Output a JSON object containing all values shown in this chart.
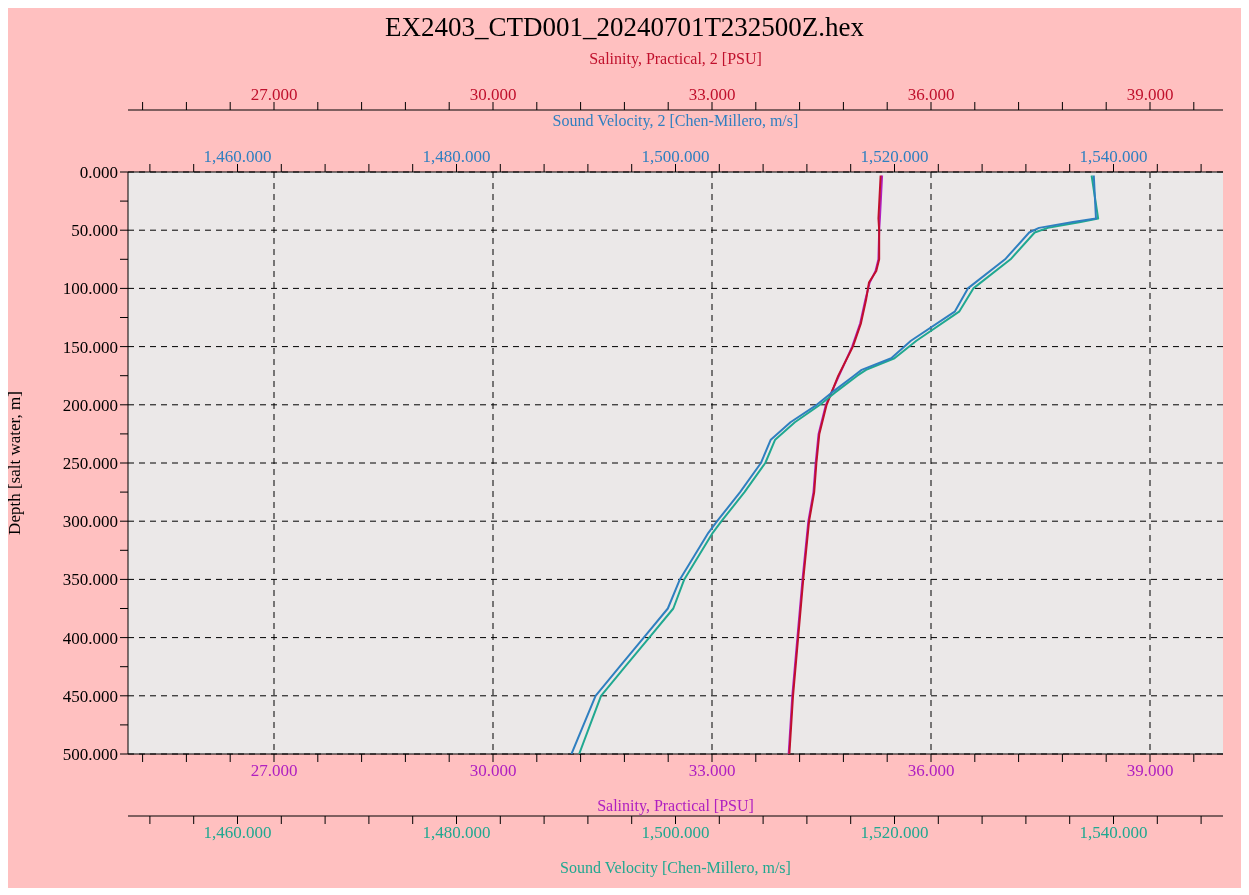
{
  "chart_data": {
    "type": "line",
    "title": "EX2403_CTD001_20240701T232500Z.hex",
    "xlabel": "Salinity, Practical [PSU]",
    "x2label": "Sound Velocity, 2 [Chen-Millero, m/s]",
    "ylabel": "Depth [salt water, m]",
    "annotations": [
      "Salinity, Practical, 2 [PSU]",
      "Sound Velocity [Chen-Millero, m/s]"
    ],
    "xlim": [
      25,
      40
    ],
    "x2lim": [
      1450,
      1550
    ],
    "ylim": [
      500,
      0
    ],
    "xticks": [
      {
        "value": 25.2,
        "label": null
      },
      {
        "value": 25.8,
        "label": null
      },
      {
        "value": 26.4,
        "label": null
      },
      {
        "value": 27,
        "label": "27.000"
      },
      {
        "value": 27.6,
        "label": null
      },
      {
        "value": 28.2,
        "label": null
      },
      {
        "value": 28.8,
        "label": null
      },
      {
        "value": 29.4,
        "label": null
      },
      {
        "value": 30,
        "label": "30.000"
      },
      {
        "value": 30.6,
        "label": null
      },
      {
        "value": 31.2,
        "label": null
      },
      {
        "value": 31.8,
        "label": null
      },
      {
        "value": 32.4,
        "label": null
      },
      {
        "value": 33,
        "label": "33.000"
      },
      {
        "value": 33.6,
        "label": null
      },
      {
        "value": 34.2,
        "label": null
      },
      {
        "value": 34.8,
        "label": null
      },
      {
        "value": 35.4,
        "label": null
      },
      {
        "value": 36,
        "label": "36.000"
      },
      {
        "value": 36.6,
        "label": null
      },
      {
        "value": 37.2,
        "label": null
      },
      {
        "value": 37.8,
        "label": null
      },
      {
        "value": 38.4,
        "label": null
      },
      {
        "value": 39,
        "label": "39.000"
      },
      {
        "value": 39.6,
        "label": null
      }
    ],
    "x2ticks": [
      {
        "value": 1452,
        "label": null
      },
      {
        "value": 1456,
        "label": null
      },
      {
        "value": 1460,
        "label": "1,460.000"
      },
      {
        "value": 1464,
        "label": null
      },
      {
        "value": 1468,
        "label": null
      },
      {
        "value": 1472,
        "label": null
      },
      {
        "value": 1476,
        "label": null
      },
      {
        "value": 1480,
        "label": "1,480.000"
      },
      {
        "value": 1484,
        "label": null
      },
      {
        "value": 1488,
        "label": null
      },
      {
        "value": 1492,
        "label": null
      },
      {
        "value": 1496,
        "label": null
      },
      {
        "value": 1500,
        "label": "1,500.000"
      },
      {
        "value": 1504,
        "label": null
      },
      {
        "value": 1508,
        "label": null
      },
      {
        "value": 1512,
        "label": null
      },
      {
        "value": 1516,
        "label": null
      },
      {
        "value": 1520,
        "label": "1,520.000"
      },
      {
        "value": 1524,
        "label": null
      },
      {
        "value": 1528,
        "label": null
      },
      {
        "value": 1532,
        "label": null
      },
      {
        "value": 1536,
        "label": null
      },
      {
        "value": 1540,
        "label": "1,540.000"
      },
      {
        "value": 1544,
        "label": null
      },
      {
        "value": 1548,
        "label": null
      }
    ],
    "yticks": [
      {
        "value": 0,
        "label": "0.000"
      },
      {
        "value": 25,
        "label": null
      },
      {
        "value": 50,
        "label": "50.000"
      },
      {
        "value": 75,
        "label": null
      },
      {
        "value": 100,
        "label": "100.000"
      },
      {
        "value": 125,
        "label": null
      },
      {
        "value": 150,
        "label": "150.000"
      },
      {
        "value": 175,
        "label": null
      },
      {
        "value": 200,
        "label": "200.000"
      },
      {
        "value": 225,
        "label": null
      },
      {
        "value": 250,
        "label": "250.000"
      },
      {
        "value": 275,
        "label": null
      },
      {
        "value": 300,
        "label": "300.000"
      },
      {
        "value": 325,
        "label": null
      },
      {
        "value": 350,
        "label": "350.000"
      },
      {
        "value": 375,
        "label": null
      },
      {
        "value": 400,
        "label": "400.000"
      },
      {
        "value": 425,
        "label": null
      },
      {
        "value": 450,
        "label": "450.000"
      },
      {
        "value": 475,
        "label": null
      },
      {
        "value": 500,
        "label": "500.000"
      }
    ],
    "grid": true,
    "series": [
      {
        "color": "#b020c0",
        "x": [
          35.33,
          35.3,
          35.29,
          35.28,
          35.24,
          35.16,
          35.1,
          35.03,
          34.92,
          34.74,
          34.56,
          34.46,
          34.42,
          34.39,
          34.32,
          34.24,
          34.17,
          34.1,
          34.05
        ],
        "values": [
          3,
          40,
          50,
          75,
          85,
          95,
          110,
          130,
          150,
          175,
          200,
          225,
          250,
          275,
          300,
          350,
          400,
          450,
          500
        ]
      },
      {
        "color": "#c0102c",
        "x": [
          35.31,
          35.28,
          35.29,
          35.29,
          35.25,
          35.15,
          35.11,
          35.04,
          34.93,
          34.73,
          34.57,
          34.47,
          34.43,
          34.4,
          34.33,
          34.25,
          34.18,
          34.11,
          34.06
        ],
        "values": [
          3,
          40,
          50,
          75,
          85,
          95,
          110,
          130,
          150,
          175,
          200,
          225,
          250,
          275,
          300,
          350,
          400,
          450,
          500
        ]
      },
      {
        "color": "#20a890",
        "axis": "x2",
        "x": [
          1538.0,
          1538.6,
          1537.0,
          1534.0,
          1532.8,
          1530.6,
          1527.2,
          1525.9,
          1522.0,
          1520.0,
          1517.4,
          1516.6,
          1514.5,
          1513.2,
          1510.9,
          1509.1,
          1508.2,
          1506.3,
          1504.2,
          1503.4,
          1500.8,
          1499.8,
          1497.6,
          1495.4,
          1493.2,
          1492.2,
          1491.2
        ],
        "values": [
          3,
          40,
          43,
          48,
          52,
          75,
          100,
          120,
          145,
          160,
          170,
          175,
          190,
          200,
          215,
          230,
          250,
          275,
          300,
          310,
          350,
          375,
          400,
          425,
          450,
          475,
          500
        ]
      },
      {
        "color": "#2f7fc0",
        "axis": "x2",
        "x": [
          1538.2,
          1538.4,
          1536.3,
          1533.2,
          1532.3,
          1530.1,
          1526.7,
          1525.5,
          1521.5,
          1519.7,
          1517.0,
          1516.3,
          1514.2,
          1512.9,
          1510.5,
          1508.7,
          1507.8,
          1505.9,
          1503.8,
          1503.0,
          1500.4,
          1499.3,
          1497.1,
          1494.9,
          1492.7,
          1491.6,
          1490.5
        ],
        "values": [
          3,
          40,
          43,
          48,
          52,
          75,
          100,
          120,
          145,
          160,
          170,
          175,
          190,
          200,
          215,
          230,
          250,
          275,
          300,
          310,
          350,
          375,
          400,
          425,
          450,
          475,
          500
        ]
      }
    ]
  }
}
